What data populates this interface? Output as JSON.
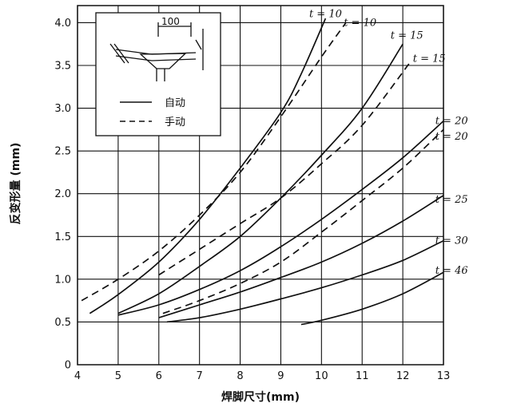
{
  "chart_data": {
    "type": "line",
    "xlabel": "焊脚尺寸(mm)",
    "ylabel": "反变形量 (mm)",
    "xlim": [
      4,
      13
    ],
    "ylim": [
      0,
      4.2
    ],
    "xticks": [
      4,
      5,
      6,
      7,
      8,
      9,
      10,
      11,
      12,
      13
    ],
    "yticks": [
      "0",
      "0.5",
      "1.0",
      "1.5",
      "2.0",
      "2.5",
      "3.0",
      "3.5",
      "4.0"
    ],
    "grid": true,
    "legend": {
      "placement": "top-left",
      "entries": [
        {
          "label": "自动",
          "style": "solid"
        },
        {
          "label": "手动",
          "style": "dashed"
        }
      ],
      "inset_dimension": "100"
    },
    "series": [
      {
        "label": "t = 10",
        "style": "solid",
        "points": [
          [
            4.3,
            0.6
          ],
          [
            5,
            0.82
          ],
          [
            6,
            1.2
          ],
          [
            7,
            1.7
          ],
          [
            8,
            2.3
          ],
          [
            9,
            2.95
          ],
          [
            9.5,
            3.4
          ],
          [
            10.1,
            4.05
          ]
        ]
      },
      {
        "label": "t = 10",
        "style": "dashed",
        "points": [
          [
            4.1,
            0.75
          ],
          [
            5,
            1.0
          ],
          [
            6,
            1.33
          ],
          [
            7,
            1.75
          ],
          [
            8,
            2.25
          ],
          [
            9,
            2.9
          ],
          [
            10,
            3.6
          ],
          [
            10.6,
            4.0
          ]
        ]
      },
      {
        "label": "t = 15",
        "style": "solid",
        "points": [
          [
            5,
            0.6
          ],
          [
            6,
            0.83
          ],
          [
            7,
            1.15
          ],
          [
            8,
            1.5
          ],
          [
            9,
            1.95
          ],
          [
            10,
            2.45
          ],
          [
            11,
            3.0
          ],
          [
            12,
            3.75
          ]
        ]
      },
      {
        "label": "t = 15",
        "style": "dashed",
        "points": [
          [
            6,
            1.05
          ],
          [
            7,
            1.35
          ],
          [
            8,
            1.65
          ],
          [
            9,
            1.95
          ],
          [
            10,
            2.35
          ],
          [
            11,
            2.8
          ],
          [
            12.2,
            3.55
          ]
        ]
      },
      {
        "label": "t = 20",
        "style": "solid",
        "points": [
          [
            5,
            0.58
          ],
          [
            6,
            0.7
          ],
          [
            7,
            0.88
          ],
          [
            8,
            1.1
          ],
          [
            9,
            1.38
          ],
          [
            10,
            1.7
          ],
          [
            11,
            2.05
          ],
          [
            12,
            2.42
          ],
          [
            13,
            2.85
          ]
        ]
      },
      {
        "label": "t = 20",
        "style": "dashed",
        "points": [
          [
            6.1,
            0.6
          ],
          [
            7,
            0.75
          ],
          [
            8,
            0.95
          ],
          [
            9,
            1.2
          ],
          [
            10,
            1.55
          ],
          [
            11,
            1.92
          ],
          [
            12,
            2.3
          ],
          [
            13,
            2.75
          ]
        ]
      },
      {
        "label": "t = 25",
        "style": "solid",
        "points": [
          [
            6,
            0.55
          ],
          [
            7,
            0.7
          ],
          [
            8,
            0.85
          ],
          [
            9,
            1.02
          ],
          [
            10,
            1.2
          ],
          [
            11,
            1.42
          ],
          [
            12,
            1.68
          ],
          [
            13,
            1.98
          ]
        ]
      },
      {
        "label": "t = 30",
        "style": "solid",
        "points": [
          [
            6.2,
            0.5
          ],
          [
            7,
            0.55
          ],
          [
            8,
            0.65
          ],
          [
            9,
            0.77
          ],
          [
            10,
            0.9
          ],
          [
            11,
            1.05
          ],
          [
            12,
            1.22
          ],
          [
            13,
            1.45
          ]
        ]
      },
      {
        "label": "t = 46",
        "style": "solid",
        "points": [
          [
            9.5,
            0.47
          ],
          [
            10,
            0.52
          ],
          [
            11,
            0.65
          ],
          [
            12,
            0.83
          ],
          [
            13,
            1.08
          ]
        ]
      }
    ],
    "series_labels": [
      {
        "text": "t = 10",
        "x": 10.1,
        "y": 4.1
      },
      {
        "text": "t = 10",
        "x": 10.95,
        "y": 4.0
      },
      {
        "text": "t = 15",
        "x": 12.1,
        "y": 3.85
      },
      {
        "text": "t = 15",
        "x": 12.65,
        "y": 3.58
      },
      {
        "text": "t = 20",
        "x": 13.2,
        "y": 2.85
      },
      {
        "text": "t = 20",
        "x": 13.2,
        "y": 2.67
      },
      {
        "text": "t = 25",
        "x": 13.2,
        "y": 1.93
      },
      {
        "text": "t = 30",
        "x": 13.2,
        "y": 1.45
      },
      {
        "text": "t = 46",
        "x": 13.2,
        "y": 1.1
      }
    ]
  }
}
